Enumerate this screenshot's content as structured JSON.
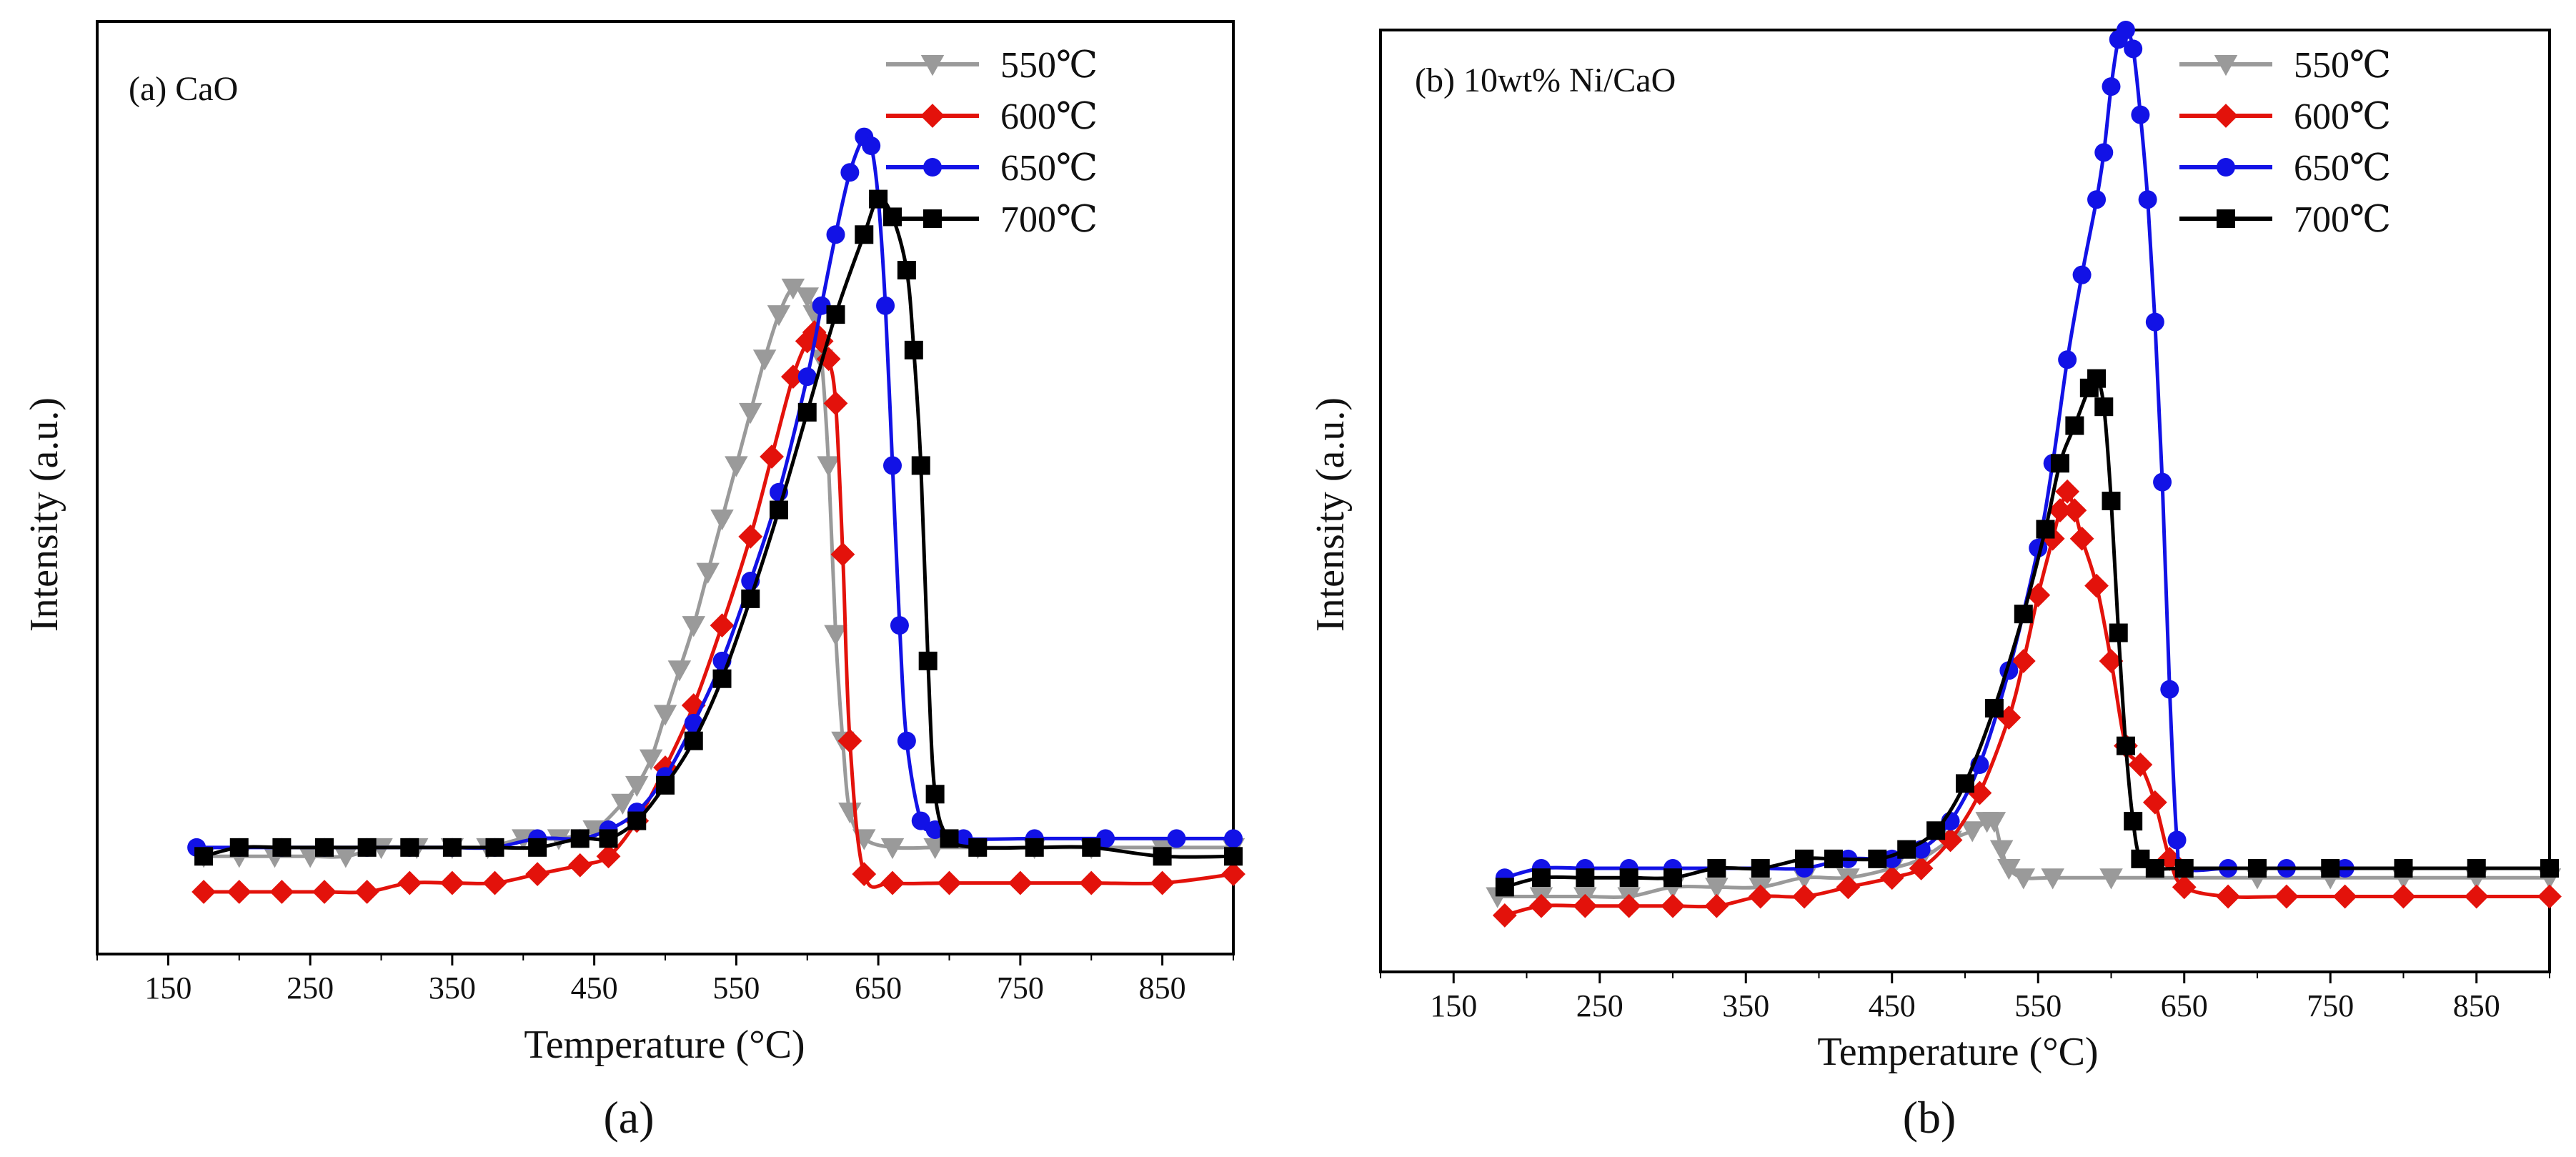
{
  "figure": {
    "captions": [
      "(a)",
      "(b)"
    ]
  },
  "colors": {
    "550": "#9a9a9a",
    "600": "#e3120b",
    "650": "#1212e6",
    "700": "#000000"
  },
  "chart_data": [
    {
      "type": "line",
      "title": "(a) CaO",
      "caption": "(a)",
      "xlabel": "Temperature (°C)",
      "ylabel": "Intensity (a.u.)",
      "xlim": [
        100,
        900
      ],
      "ylim": [
        0,
        1.05
      ],
      "xticks": [
        150,
        250,
        350,
        450,
        550,
        650,
        750,
        850
      ],
      "legend_position": "top-right",
      "series": [
        {
          "name": "550℃",
          "color": "#9a9a9a",
          "marker": "triangle-down",
          "x": [
            175,
            200,
            225,
            250,
            275,
            300,
            325,
            350,
            375,
            400,
            425,
            450,
            470,
            480,
            490,
            500,
            510,
            520,
            530,
            540,
            550,
            560,
            570,
            580,
            590,
            600,
            605,
            610,
            615,
            620,
            625,
            630,
            640,
            660,
            690,
            720,
            760,
            800,
            850,
            900
          ],
          "y": [
            0.11,
            0.11,
            0.11,
            0.11,
            0.11,
            0.12,
            0.12,
            0.12,
            0.12,
            0.13,
            0.13,
            0.14,
            0.17,
            0.19,
            0.22,
            0.27,
            0.32,
            0.37,
            0.43,
            0.49,
            0.55,
            0.61,
            0.67,
            0.72,
            0.75,
            0.74,
            0.72,
            0.67,
            0.55,
            0.36,
            0.24,
            0.16,
            0.13,
            0.12,
            0.12,
            0.12,
            0.12,
            0.12,
            0.12,
            0.12
          ]
        },
        {
          "name": "600℃",
          "color": "#e3120b",
          "marker": "diamond",
          "x": [
            175,
            200,
            230,
            260,
            290,
            320,
            350,
            380,
            410,
            440,
            460,
            480,
            500,
            520,
            540,
            560,
            575,
            590,
            600,
            605,
            610,
            615,
            620,
            625,
            630,
            640,
            660,
            700,
            750,
            800,
            850,
            900
          ],
          "y": [
            0.07,
            0.07,
            0.07,
            0.07,
            0.07,
            0.08,
            0.08,
            0.08,
            0.09,
            0.1,
            0.11,
            0.15,
            0.21,
            0.28,
            0.37,
            0.47,
            0.56,
            0.65,
            0.69,
            0.7,
            0.69,
            0.67,
            0.62,
            0.45,
            0.24,
            0.09,
            0.08,
            0.08,
            0.08,
            0.08,
            0.08,
            0.09
          ]
        },
        {
          "name": "650℃",
          "color": "#1212e6",
          "marker": "circle",
          "x": [
            170,
            200,
            230,
            260,
            290,
            320,
            350,
            380,
            410,
            440,
            460,
            480,
            500,
            520,
            540,
            560,
            580,
            600,
            610,
            620,
            630,
            640,
            645,
            650,
            655,
            660,
            665,
            670,
            680,
            690,
            710,
            760,
            810,
            860,
            900
          ],
          "y": [
            0.12,
            0.12,
            0.12,
            0.12,
            0.12,
            0.12,
            0.12,
            0.12,
            0.13,
            0.13,
            0.14,
            0.16,
            0.2,
            0.26,
            0.33,
            0.42,
            0.52,
            0.65,
            0.73,
            0.81,
            0.88,
            0.92,
            0.91,
            0.85,
            0.73,
            0.55,
            0.37,
            0.24,
            0.15,
            0.14,
            0.13,
            0.13,
            0.13,
            0.13,
            0.13
          ]
        },
        {
          "name": "700℃",
          "color": "#000000",
          "marker": "square",
          "x": [
            175,
            200,
            230,
            260,
            290,
            320,
            350,
            380,
            410,
            440,
            460,
            480,
            500,
            520,
            540,
            560,
            580,
            600,
            620,
            640,
            650,
            660,
            670,
            675,
            680,
            685,
            690,
            700,
            720,
            760,
            800,
            850,
            900
          ],
          "y": [
            0.11,
            0.12,
            0.12,
            0.12,
            0.12,
            0.12,
            0.12,
            0.12,
            0.12,
            0.13,
            0.13,
            0.15,
            0.19,
            0.24,
            0.31,
            0.4,
            0.5,
            0.61,
            0.72,
            0.81,
            0.85,
            0.83,
            0.77,
            0.68,
            0.55,
            0.33,
            0.18,
            0.13,
            0.12,
            0.12,
            0.12,
            0.11,
            0.11
          ]
        }
      ]
    },
    {
      "type": "line",
      "title": "(b) 10wt% Ni/CaO",
      "caption": "(b)",
      "xlabel": "Temperature (°C)",
      "ylabel": "Intensity (a.u.)",
      "xlim": [
        100,
        900
      ],
      "ylim": [
        0,
        1.0
      ],
      "xticks": [
        150,
        250,
        350,
        450,
        550,
        650,
        750,
        850
      ],
      "legend_position": "top-right",
      "series": [
        {
          "name": "550℃",
          "color": "#9a9a9a",
          "marker": "triangle-down",
          "x": [
            180,
            210,
            240,
            270,
            300,
            330,
            360,
            390,
            420,
            450,
            470,
            490,
            505,
            515,
            520,
            525,
            530,
            540,
            560,
            600,
            650,
            700,
            750,
            800,
            850,
            900
          ],
          "y": [
            0.08,
            0.08,
            0.08,
            0.08,
            0.09,
            0.09,
            0.09,
            0.1,
            0.1,
            0.11,
            0.12,
            0.14,
            0.15,
            0.16,
            0.16,
            0.13,
            0.11,
            0.1,
            0.1,
            0.1,
            0.1,
            0.1,
            0.1,
            0.1,
            0.1,
            0.1
          ]
        },
        {
          "name": "600℃",
          "color": "#e3120b",
          "marker": "diamond",
          "x": [
            185,
            210,
            240,
            270,
            300,
            330,
            360,
            390,
            420,
            450,
            470,
            490,
            510,
            530,
            540,
            550,
            560,
            565,
            570,
            575,
            580,
            590,
            600,
            610,
            620,
            630,
            640,
            650,
            680,
            720,
            760,
            800,
            850,
            900
          ],
          "y": [
            0.06,
            0.07,
            0.07,
            0.07,
            0.07,
            0.07,
            0.08,
            0.08,
            0.09,
            0.1,
            0.11,
            0.14,
            0.19,
            0.27,
            0.33,
            0.4,
            0.46,
            0.49,
            0.51,
            0.49,
            0.46,
            0.41,
            0.33,
            0.24,
            0.22,
            0.18,
            0.12,
            0.09,
            0.08,
            0.08,
            0.08,
            0.08,
            0.08,
            0.08
          ]
        },
        {
          "name": "650℃",
          "color": "#1212e6",
          "marker": "circle",
          "x": [
            185,
            210,
            240,
            270,
            300,
            330,
            360,
            390,
            420,
            450,
            470,
            490,
            510,
            530,
            550,
            560,
            570,
            580,
            590,
            595,
            600,
            605,
            610,
            615,
            620,
            625,
            630,
            635,
            640,
            645,
            650,
            680,
            720,
            760,
            800,
            850,
            900
          ],
          "y": [
            0.1,
            0.11,
            0.11,
            0.11,
            0.11,
            0.11,
            0.11,
            0.11,
            0.12,
            0.12,
            0.13,
            0.16,
            0.22,
            0.32,
            0.45,
            0.54,
            0.65,
            0.74,
            0.82,
            0.87,
            0.94,
            0.99,
            1.0,
            0.98,
            0.91,
            0.82,
            0.69,
            0.52,
            0.3,
            0.14,
            0.11,
            0.11,
            0.11,
            0.11,
            0.11,
            0.11,
            0.11
          ]
        },
        {
          "name": "700℃",
          "color": "#000000",
          "marker": "square",
          "x": [
            185,
            210,
            240,
            270,
            300,
            330,
            360,
            390,
            410,
            440,
            460,
            480,
            500,
            520,
            540,
            555,
            565,
            575,
            585,
            590,
            595,
            600,
            605,
            610,
            615,
            620,
            630,
            650,
            700,
            750,
            800,
            850,
            900
          ],
          "y": [
            0.09,
            0.1,
            0.1,
            0.1,
            0.1,
            0.11,
            0.11,
            0.12,
            0.12,
            0.12,
            0.13,
            0.15,
            0.2,
            0.28,
            0.38,
            0.47,
            0.54,
            0.58,
            0.62,
            0.63,
            0.6,
            0.5,
            0.36,
            0.24,
            0.16,
            0.12,
            0.11,
            0.11,
            0.11,
            0.11,
            0.11,
            0.11,
            0.11
          ]
        }
      ]
    }
  ]
}
